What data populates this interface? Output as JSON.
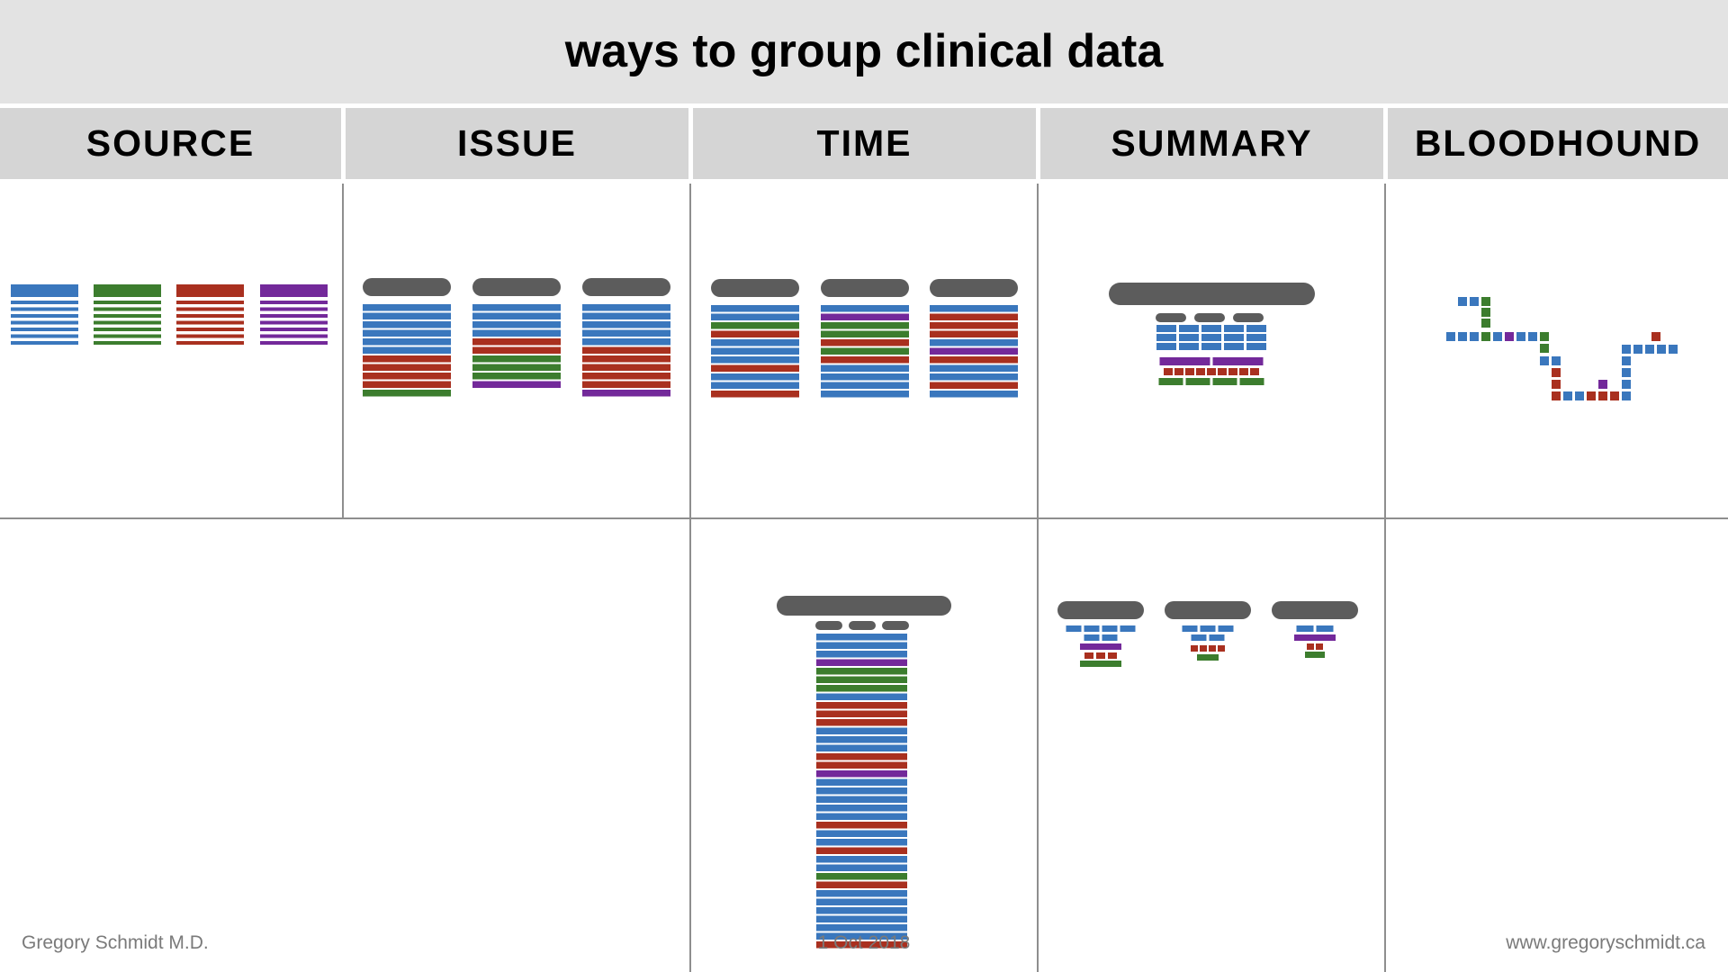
{
  "title": "ways to group clinical data",
  "columns": [
    {
      "label": "SOURCE"
    },
    {
      "label": "ISSUE"
    },
    {
      "label": "TIME"
    },
    {
      "label": "SUMMARY"
    },
    {
      "label": "BLOODHOUND"
    }
  ],
  "footer": {
    "author": "Gregory Schmidt M.D.",
    "date": "1 Oct 2018",
    "website": "www.gregoryschmidt.ca"
  },
  "colors": {
    "blue": "#3a77bd",
    "green": "#3c7d2e",
    "red": "#a9301f",
    "purple": "#73299a",
    "header_block": "#5c5c5c"
  }
}
